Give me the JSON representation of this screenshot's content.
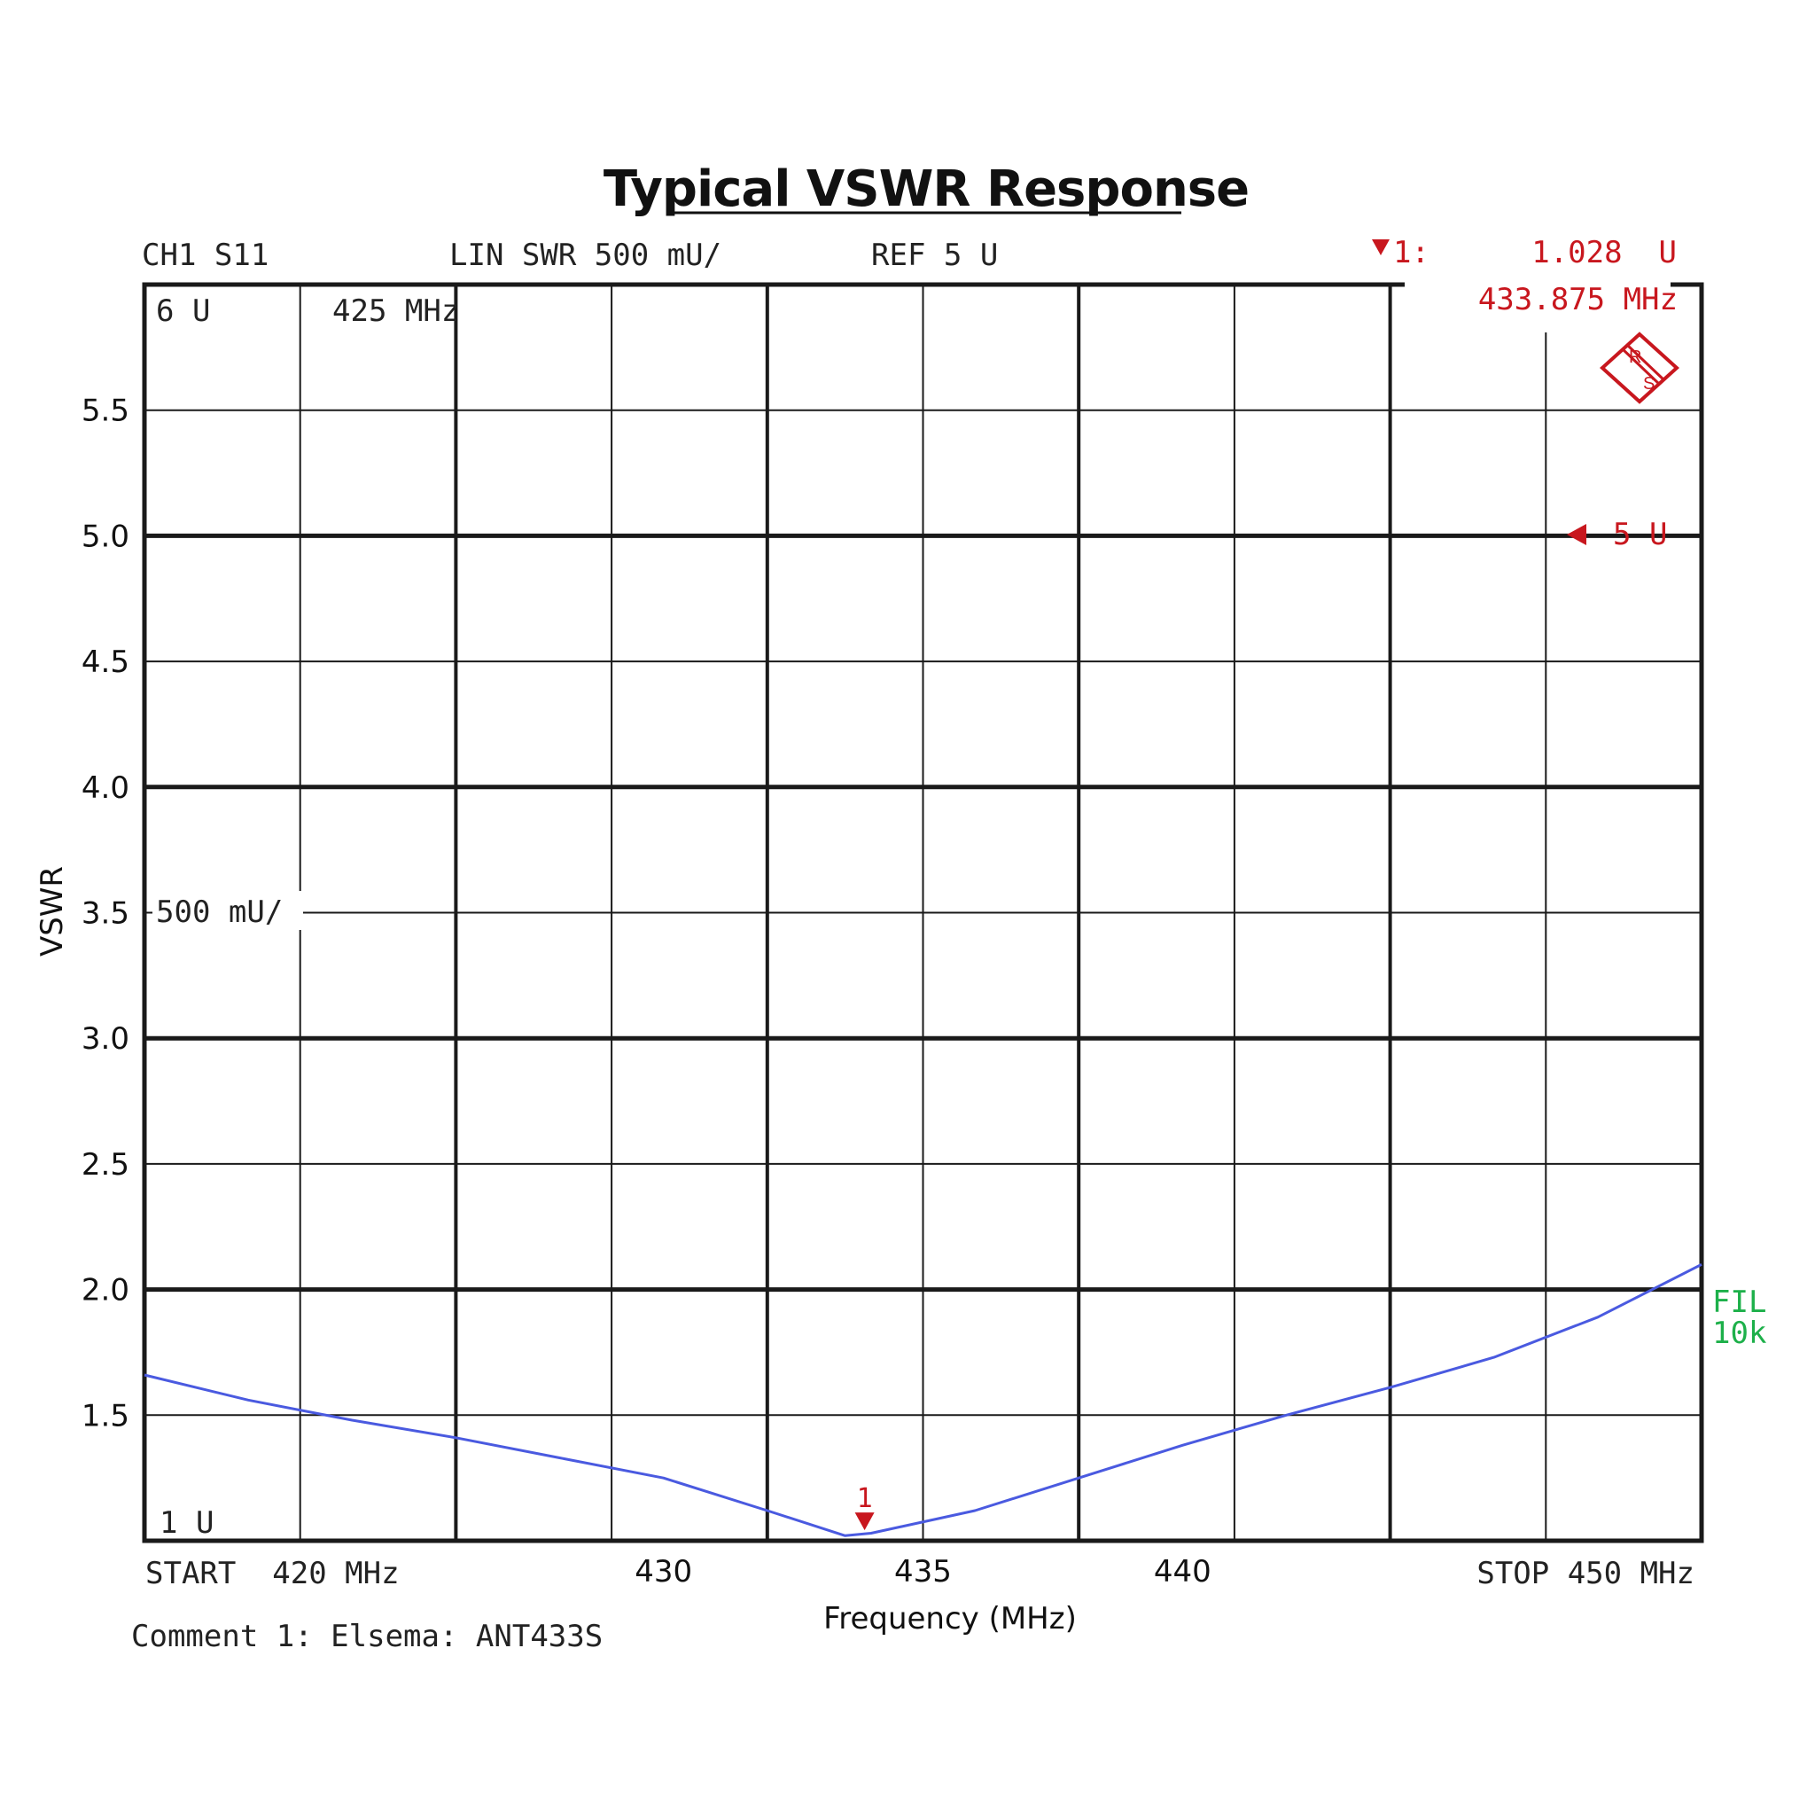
{
  "title": "Typical VSWR Response",
  "header": {
    "channel": "CH1 S11",
    "format": "LIN SWR 500 mU/",
    "reference": "REF 5 U",
    "marker_label": "1:",
    "marker_value": "1.028  U",
    "marker_freq": "433.875 MHz"
  },
  "in_plot": {
    "top_left": "6 U",
    "top_freq": "425 MHz",
    "scale_label": "500 mU/",
    "bottom_left": "1 U",
    "ref_marker": "5 U",
    "filter_line1": "FIL",
    "filter_line2": "10k",
    "marker_number": "1"
  },
  "footer": {
    "start": "START  420 MHz",
    "stop": "STOP 450 MHz",
    "comment": "Comment 1: Elsema: ANT433S"
  },
  "colors": {
    "trace": "#4a5ae0",
    "marker": "#c8171e",
    "filter": "#1db04a",
    "grid": "#1a1a1a"
  },
  "chart_data": {
    "type": "line",
    "title": "Typical VSWR Response",
    "xlabel": "Frequency (MHz)",
    "ylabel": "VSWR",
    "xlim": [
      420,
      450
    ],
    "ylim": [
      1,
      6
    ],
    "x_ticks": [
      {
        "value": 430,
        "label": "430"
      },
      {
        "value": 435,
        "label": "435"
      },
      {
        "value": 440,
        "label": "440"
      }
    ],
    "y_ticks": [
      {
        "value": 5.5,
        "label": "5.5"
      },
      {
        "value": 5.0,
        "label": "5.0"
      },
      {
        "value": 4.5,
        "label": "4.5"
      },
      {
        "value": 4.0,
        "label": "4.0"
      },
      {
        "value": 3.5,
        "label": "3.5"
      },
      {
        "value": 3.0,
        "label": "3.0"
      },
      {
        "value": 2.5,
        "label": "2.5"
      },
      {
        "value": 2.0,
        "label": "2.0"
      },
      {
        "value": 1.5,
        "label": "1.5"
      }
    ],
    "grid": true,
    "series": [
      {
        "x": [
          420,
          422,
          424,
          426,
          428,
          430,
          432,
          433.5,
          434,
          436,
          438,
          440,
          442,
          444,
          446,
          448,
          450
        ],
        "y": [
          1.66,
          1.56,
          1.48,
          1.41,
          1.33,
          1.25,
          1.12,
          1.02,
          1.03,
          1.12,
          1.25,
          1.38,
          1.5,
          1.61,
          1.73,
          1.89,
          2.1
        ]
      }
    ],
    "marker": {
      "x": 433.875,
      "y": 1.028
    }
  }
}
